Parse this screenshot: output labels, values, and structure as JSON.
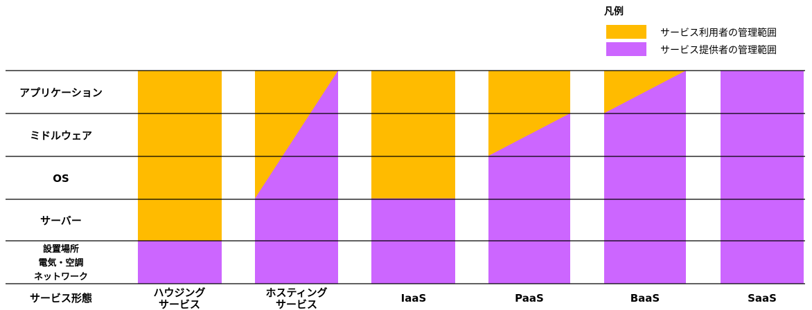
{
  "legend": {
    "title": "凡例",
    "items": [
      {
        "label": "サービス利用者の管理範囲",
        "color": "#FFBB00"
      },
      {
        "label": "サービス提供者の管理範囲",
        "color": "#CC66FF"
      }
    ]
  },
  "layers": [
    {
      "label": "アプリケーション"
    },
    {
      "label": "ミドルウェア"
    },
    {
      "label": "OS"
    },
    {
      "label": "サーバー"
    },
    {
      "label_lines": [
        "設置場所",
        "電気・空調",
        "ネットワーク"
      ]
    }
  ],
  "footer_label": "サービス形態",
  "columns": [
    {
      "label_lines": [
        "ハウジング",
        "サービス"
      ],
      "provider_share_left": 0.2,
      "provider_share_right": 0.2
    },
    {
      "label_lines": [
        "ホスティング",
        "サービス"
      ],
      "provider_share_left": 0.4,
      "provider_share_right": 1.0
    },
    {
      "label_lines": [
        "IaaS"
      ],
      "provider_share_left": 0.4,
      "provider_share_right": 0.4
    },
    {
      "label_lines": [
        "PaaS"
      ],
      "provider_share_left": 0.6,
      "provider_share_right": 0.8
    },
    {
      "label_lines": [
        "BaaS"
      ],
      "provider_share_left": 0.8,
      "provider_share_right": 1.0
    },
    {
      "label_lines": [
        "SaaS"
      ],
      "provider_share_left": 1.0,
      "provider_share_right": 1.0
    }
  ]
}
